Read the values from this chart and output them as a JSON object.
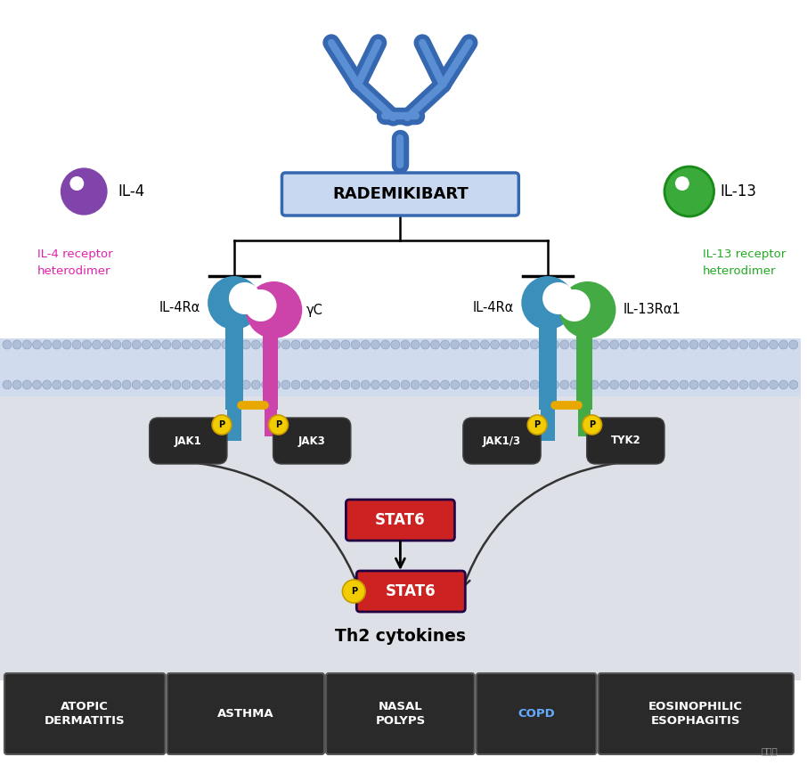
{
  "fig_width": 9.06,
  "fig_height": 8.59,
  "dpi": 100,
  "bg_color": "#ffffff",
  "cell_bg_color": "#dde0e6",
  "antibody_color": "#3568b0",
  "antibody_light": "#5b8fd4",
  "rademikibart_label": "RADEMIKIBART",
  "rademikibart_box_color": "#c8d8f0",
  "rademikibart_border": "#3568b0",
  "il4_color": "#8044aa",
  "il13_color": "#3aaa3a",
  "il4ra_color": "#3a8fbb",
  "il4ra_dark": "#2a6a90",
  "yc_color": "#cc44aa",
  "yc_dark": "#aa2288",
  "il13ra1_color": "#44aa44",
  "il13ra1_dark": "#228822",
  "mem_light": "#d0dcee",
  "mem_dots": "#b0bfd8",
  "mem_outline": "#8898b8",
  "jak_bg": "#282828",
  "jak_border": "#444444",
  "stat6_bg": "#cc2222",
  "stat6_border": "#220044",
  "stat6_active_bg": "#cc2222",
  "yellow_p": "#f0cc00",
  "yellow_p_border": "#c89900",
  "pink_label": "#dd22aa",
  "green_label": "#22aa22",
  "arrow_color": "#333333",
  "th2_label": "Th2 cytokines",
  "disease_labels": [
    "ATOPIC\nDERMATITIS",
    "ASTHMA",
    "NASAL\nPOLYPS",
    "COPD",
    "EOSINOPHILIC\nESOPHAGITIS"
  ],
  "disease_text_colors": [
    "#ffffff",
    "#ffffff",
    "#ffffff",
    "#66aaff",
    "#ffffff"
  ],
  "disease_bg": "#2a2a2a",
  "disease_border": "#555555"
}
